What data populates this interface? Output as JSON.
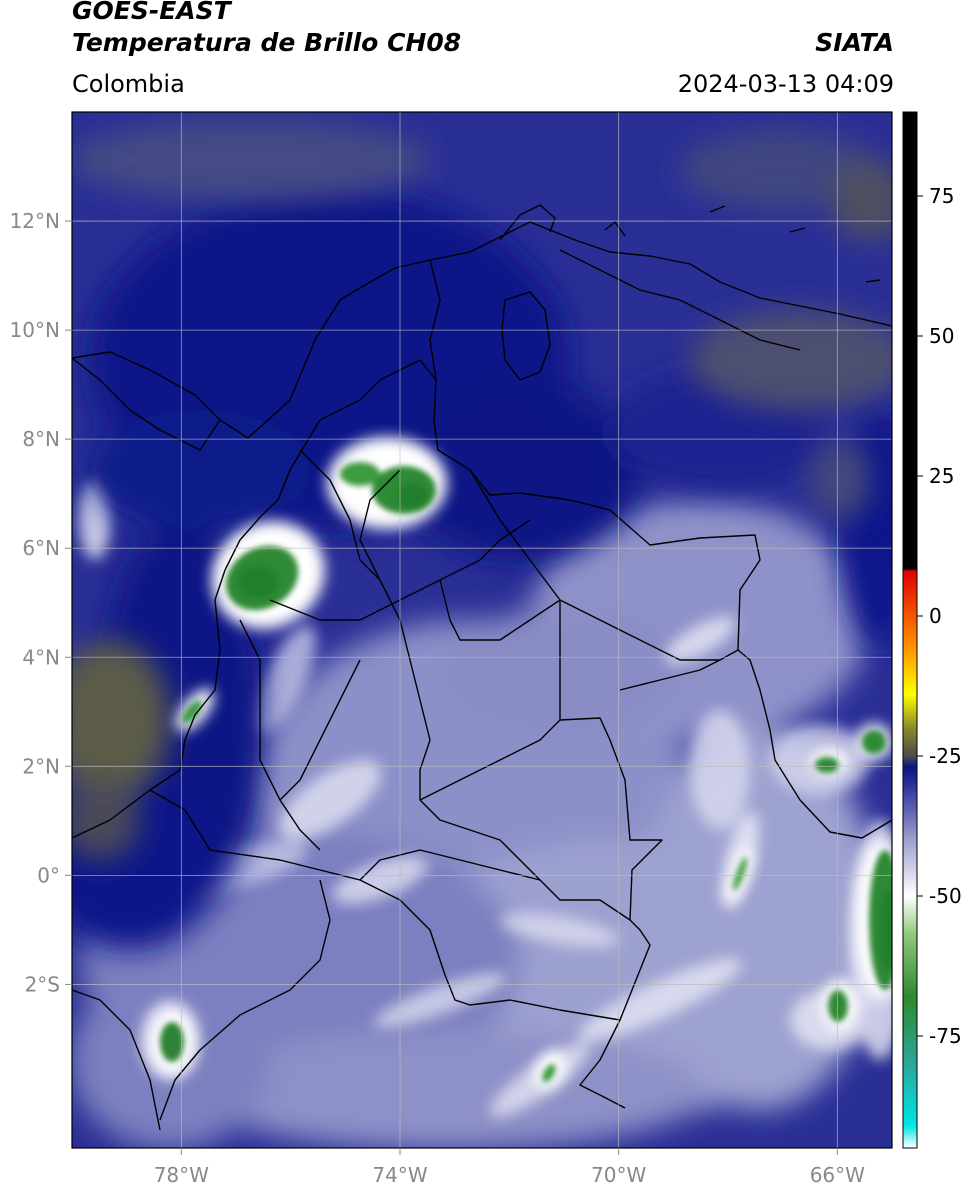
{
  "header": {
    "satellite": "GOES-EAST",
    "product": "Temperatura de Brillo CH08",
    "region": "Colombia",
    "organization": "SIATA",
    "datetime": "2024-03-13 04:09"
  },
  "map": {
    "lon_range": [
      -80,
      -65
    ],
    "lat_range": [
      -5,
      14
    ],
    "lon_ticks": [
      {
        "value": -78,
        "label": "78°W"
      },
      {
        "value": -74,
        "label": "74°W"
      },
      {
        "value": -70,
        "label": "70°W"
      },
      {
        "value": -66,
        "label": "66°W"
      }
    ],
    "lat_ticks": [
      {
        "value": 12,
        "label": "12°N"
      },
      {
        "value": 10,
        "label": "10°N"
      },
      {
        "value": 8,
        "label": "8°N"
      },
      {
        "value": 6,
        "label": "6°N"
      },
      {
        "value": 4,
        "label": "4°N"
      },
      {
        "value": 2,
        "label": "2°N"
      },
      {
        "value": 0,
        "label": "0°"
      },
      {
        "value": -2,
        "label": "2°S"
      }
    ],
    "grid": true
  },
  "colorbar": {
    "range": [
      -95,
      90
    ],
    "ticks": [
      {
        "value": 75,
        "label": "75"
      },
      {
        "value": 50,
        "label": "50"
      },
      {
        "value": 25,
        "label": "25"
      },
      {
        "value": 0,
        "label": "0"
      },
      {
        "value": -25,
        "label": "-25"
      },
      {
        "value": -50,
        "label": "-50"
      },
      {
        "value": -75,
        "label": "-75"
      }
    ],
    "stops": [
      {
        "value": -95,
        "color": "#ffffff"
      },
      {
        "value": -91,
        "color": "#00e5e5"
      },
      {
        "value": -80,
        "color": "#2aa89a"
      },
      {
        "value": -68,
        "color": "#2e8a2e"
      },
      {
        "value": -57,
        "color": "#8fc77a"
      },
      {
        "value": -50,
        "color": "#ffffff"
      },
      {
        "value": -40,
        "color": "#9ea0cf"
      },
      {
        "value": -30,
        "color": "#2a2f9a"
      },
      {
        "value": -27,
        "color": "#0b1480"
      },
      {
        "value": -25,
        "color": "#4c4c4c"
      },
      {
        "value": -20,
        "color": "#8a8a2a"
      },
      {
        "value": -14,
        "color": "#ffff00"
      },
      {
        "value": -5,
        "color": "#ff8c00"
      },
      {
        "value": 8,
        "color": "#e00000"
      },
      {
        "value": 8.5,
        "color": "#000000"
      },
      {
        "value": 90,
        "color": "#000000"
      }
    ]
  },
  "colors": {
    "deep_cold_cloud": "#2f8a36",
    "cloud_edge": "#ffffff",
    "moist_upper": "#0e1a8a",
    "dry_upper": "#9ea2cf",
    "very_dry": "#595a4a",
    "boundary": "#000000",
    "grid": "#bdbdbd"
  }
}
